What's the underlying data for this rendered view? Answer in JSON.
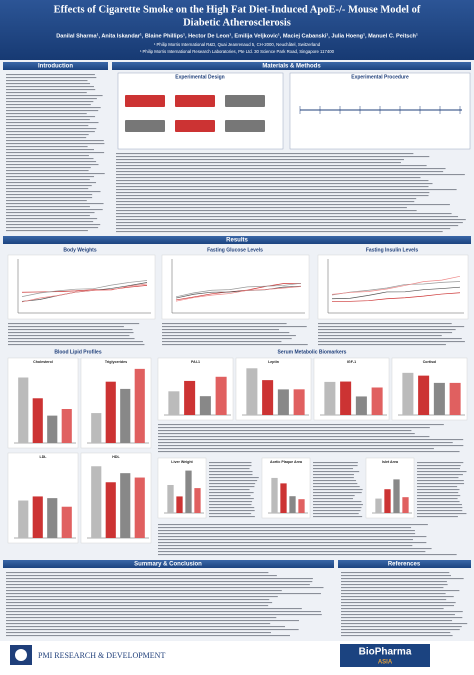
{
  "header": {
    "title": [
      "Effects of Cigarette Smoke on the High Fat Diet-Induced ApoE-/- Mouse Model of",
      "Diabetic Atherosclerosis"
    ],
    "authors": "Danilal Sharma¹, Anita Iskandar¹, Blaine Phillips¹, Hector De Leon¹, Emilija Veljkovic¹, Maciej Cabanski¹, Julia Hoeng¹, Manuel C. Peitsch¹",
    "affiliations": [
      "¹ Philip Morris International R&D, Quai Jeanrenaud 5, CH-2000, Neuchâtel, Switzerland",
      "¹ Philip Morris International Research Laboratories, Pte Ltd. 30 Science Park Road, Singapore 117400"
    ]
  },
  "sections": {
    "introduction": "Introduction",
    "methods": "Materials & Methods",
    "results": "Results",
    "summary": "Summary & Conclusion",
    "references": "References"
  },
  "methods": {
    "design": "Experimental Design",
    "procedure": "Experimental Procedure"
  },
  "results": {
    "row1": [
      "Body Weights",
      "Fasting Glucose Levels",
      "Fasting Insulin Levels"
    ],
    "lipids": "Blood Lipid Profiles",
    "lipid_panels": [
      "Cholesterol",
      "Triglycerides",
      "LDL",
      "HDL"
    ],
    "serum": "Serum Metabolic Biomarkers",
    "serum_panels": [
      "PAI-1",
      "Leptin",
      "IGF-1",
      "Cortisol"
    ],
    "tissue_panels": [
      "Liver Weight",
      "Aortic Plaque Area",
      "Islet Area"
    ]
  },
  "footer": {
    "left": "PMI RESEARCH & DEVELOPMENT",
    "right": "BioPharma",
    "right_sub": "ASIA"
  }
}
